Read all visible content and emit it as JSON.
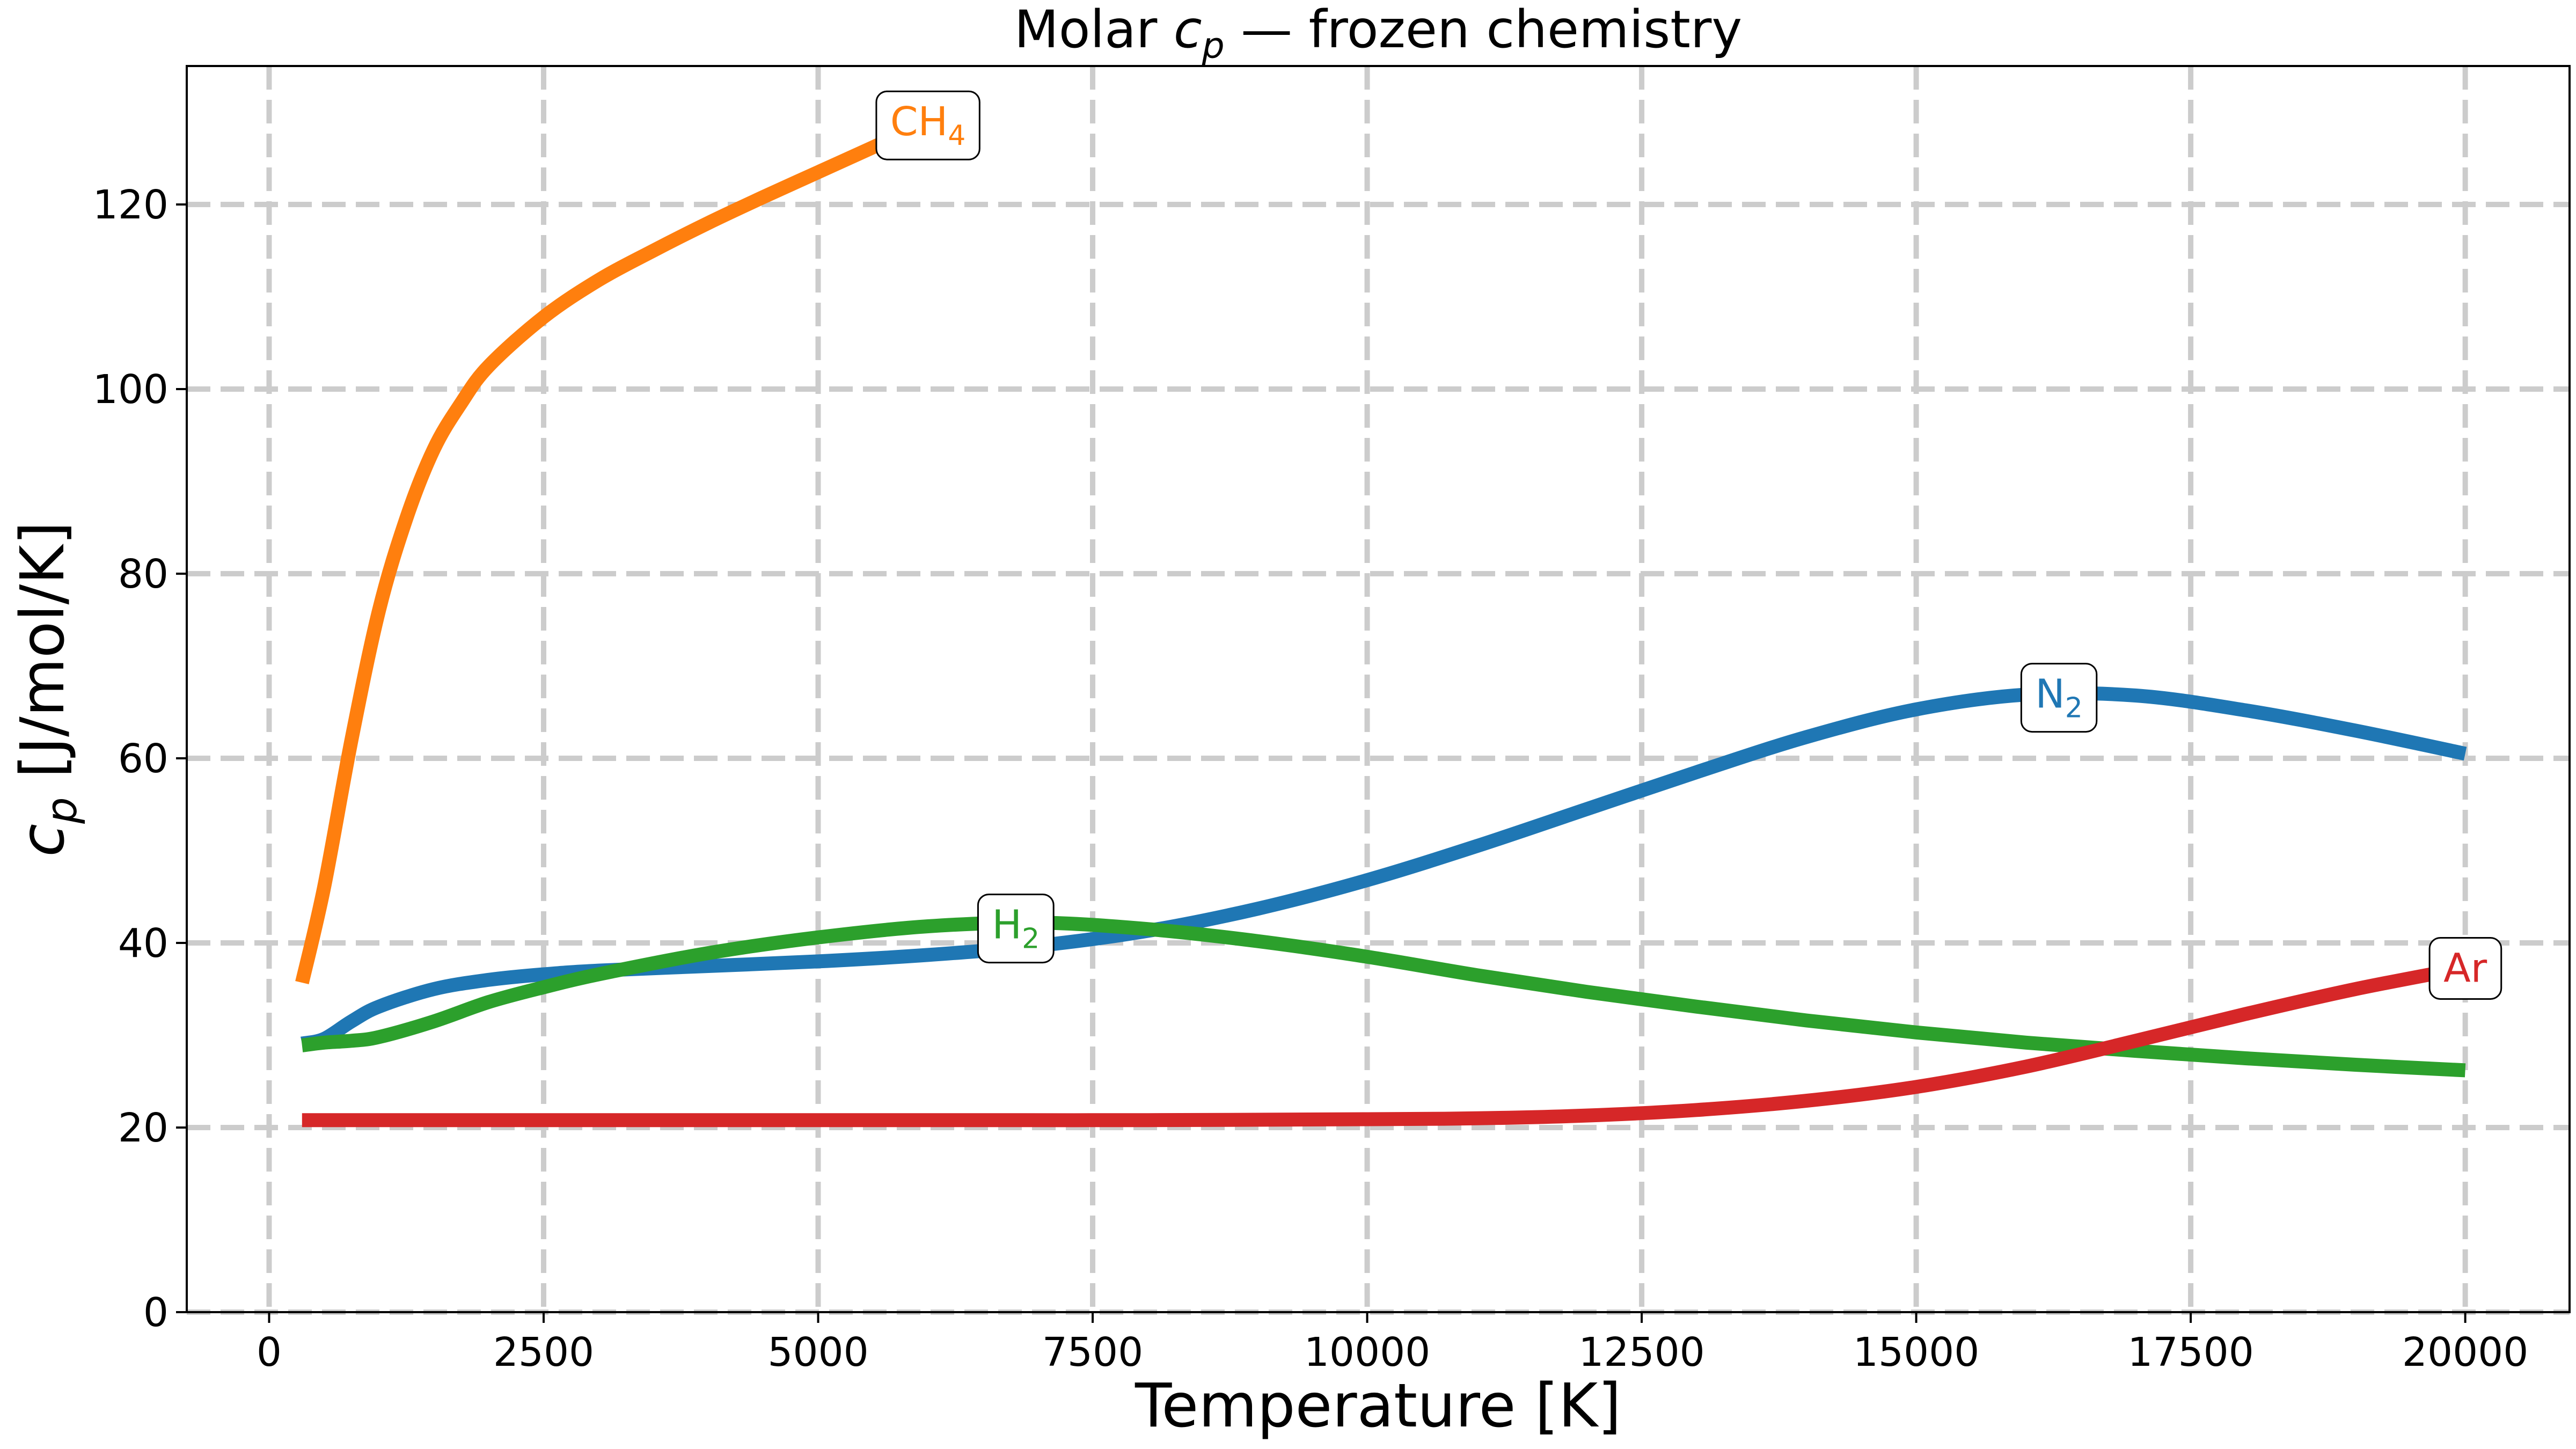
{
  "chart_data": {
    "type": "line",
    "title": {
      "pre": "Molar ",
      "var": "c",
      "sub": "p",
      "post": " — frozen chemistry"
    },
    "xlabel": "Temperature [K]",
    "ylabel": {
      "var": "c",
      "sub": "p",
      "post": " [J/mol/K]"
    },
    "xlim": [
      -750,
      20950
    ],
    "ylim": [
      0,
      135
    ],
    "xticks": [
      0,
      2500,
      5000,
      7500,
      10000,
      12500,
      15000,
      17500,
      20000
    ],
    "yticks": [
      0,
      20,
      40,
      60,
      80,
      100,
      120
    ],
    "grid": true,
    "series": [
      {
        "key": "ch4",
        "label": {
          "base": "CH",
          "sub": "4"
        },
        "color": "#ff7f0e",
        "label_at": [
          6000,
          129
        ],
        "x": [
          300,
          500,
          750,
          1000,
          1250,
          1500,
          1750,
          2000,
          2500,
          3000,
          3500,
          4000,
          4500,
          5000,
          5500,
          6000
        ],
        "y": [
          35.7,
          46,
          62,
          76,
          86,
          93.5,
          98.5,
          102.5,
          107.8,
          111.8,
          115,
          118,
          120.8,
          123.5,
          126.2,
          129
        ]
      },
      {
        "key": "n2",
        "label": {
          "base": "N",
          "sub": "2"
        },
        "color": "#1f77b4",
        "label_at": [
          16300,
          67
        ],
        "x": [
          300,
          500,
          750,
          1000,
          1500,
          2000,
          2500,
          3000,
          4000,
          5000,
          6000,
          7000,
          8000,
          9000,
          10000,
          11000,
          12000,
          13000,
          14000,
          15000,
          16000,
          17000,
          18000,
          19000,
          20000
        ],
        "y": [
          29.1,
          29.6,
          31.5,
          33.1,
          35,
          36,
          36.6,
          37,
          37.5,
          38,
          38.7,
          39.7,
          41.3,
          43.7,
          46.8,
          50.5,
          54.5,
          58.5,
          62.3,
          65.3,
          66.9,
          66.8,
          65.2,
          63,
          60.5
        ]
      },
      {
        "key": "h2",
        "label": {
          "base": "H",
          "sub": "2"
        },
        "color": "#2ca02c",
        "label_at": [
          6800,
          42
        ],
        "x": [
          300,
          500,
          750,
          1000,
          1500,
          2000,
          2500,
          3000,
          4000,
          5000,
          6000,
          7000,
          8000,
          9000,
          10000,
          11000,
          12000,
          13000,
          14000,
          15000,
          16000,
          17000,
          18000,
          19000,
          20000
        ],
        "y": [
          28.9,
          29.2,
          29.4,
          29.8,
          31.5,
          33.6,
          35.2,
          36.6,
          38.9,
          40.6,
          41.8,
          42.2,
          41.5,
          40.2,
          38.5,
          36.5,
          34.7,
          33.1,
          31.6,
          30.3,
          29.2,
          28.3,
          27.5,
          26.8,
          26.2
        ]
      },
      {
        "key": "ar",
        "label": {
          "base": "Ar",
          "sub": ""
        },
        "color": "#d62728",
        "label_at": [
          20000,
          37.3
        ],
        "x": [
          300,
          2000,
          4000,
          6000,
          8000,
          10000,
          11000,
          12000,
          13000,
          14000,
          15000,
          16000,
          17000,
          18000,
          19000,
          20000
        ],
        "y": [
          20.8,
          20.8,
          20.8,
          20.8,
          20.8,
          20.9,
          21.0,
          21.3,
          21.9,
          22.9,
          24.4,
          26.6,
          29.4,
          32.3,
          35.0,
          37.3
        ]
      }
    ]
  }
}
